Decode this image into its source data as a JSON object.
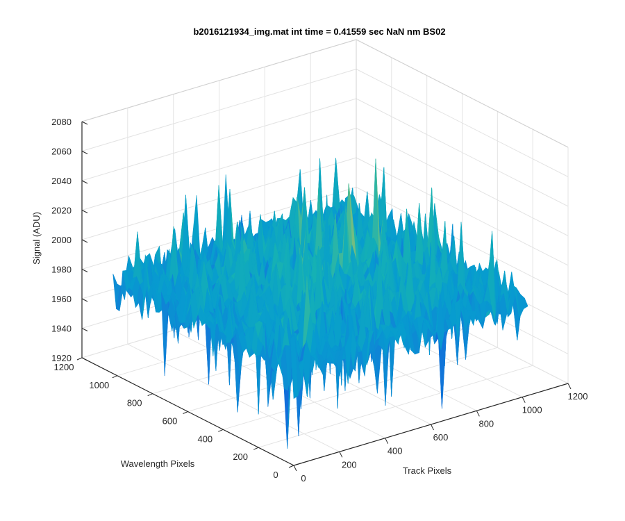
{
  "chart_data": {
    "type": "surface",
    "title": "b2016121934_img.mat int time = 0.41559 sec  NaN nm BS02",
    "xlabel": "Track Pixels",
    "ylabel": "Wavelength Pixels",
    "zlabel": "Signal (ADU)",
    "xlim": [
      0,
      1200
    ],
    "ylim": [
      0,
      1200
    ],
    "zlim": [
      1920,
      2080
    ],
    "x_ticks": [
      "0",
      "200",
      "400",
      "600",
      "800",
      "1000",
      "1200"
    ],
    "y_ticks": [
      "0",
      "200",
      "400",
      "600",
      "800",
      "1000",
      "1200"
    ],
    "z_ticks": [
      "1920",
      "1940",
      "1960",
      "1980",
      "2000",
      "2020",
      "2040",
      "2060",
      "2080"
    ],
    "grid": true,
    "colormap": "parula",
    "surface_extent": {
      "x": [
        0,
        1024
      ],
      "y": [
        0,
        1024
      ]
    },
    "signal_profile": {
      "mean_at_corners": 1984,
      "mean_at_center": 1995,
      "noise_range": [
        1925,
        2060
      ]
    }
  }
}
